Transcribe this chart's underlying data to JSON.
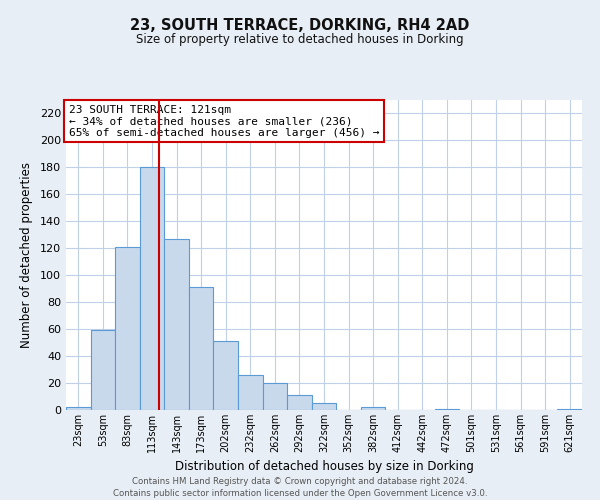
{
  "title": "23, SOUTH TERRACE, DORKING, RH4 2AD",
  "subtitle": "Size of property relative to detached houses in Dorking",
  "xlabel": "Distribution of detached houses by size in Dorking",
  "ylabel": "Number of detached properties",
  "bar_labels": [
    "23sqm",
    "53sqm",
    "83sqm",
    "113sqm",
    "143sqm",
    "173sqm",
    "202sqm",
    "232sqm",
    "262sqm",
    "292sqm",
    "322sqm",
    "352sqm",
    "382sqm",
    "412sqm",
    "442sqm",
    "472sqm",
    "501sqm",
    "531sqm",
    "561sqm",
    "591sqm",
    "621sqm"
  ],
  "bar_values": [
    2,
    59,
    121,
    180,
    127,
    91,
    51,
    26,
    20,
    11,
    5,
    0,
    2,
    0,
    0,
    1,
    0,
    0,
    0,
    0,
    1
  ],
  "bar_color": "#c9d9ec",
  "bar_edge_color": "#5b9bd5",
  "grid_color": "#c0d0e8",
  "background_color": "#e8eef5",
  "plot_background": "#ffffff",
  "vline_color": "#cc0000",
  "vline_x": 3.27,
  "annotation_text": "23 SOUTH TERRACE: 121sqm\n← 34% of detached houses are smaller (236)\n65% of semi-detached houses are larger (456) →",
  "annotation_box_color": "#ffffff",
  "annotation_box_edge": "#cc0000",
  "ylim": [
    0,
    230
  ],
  "yticks": [
    0,
    20,
    40,
    60,
    80,
    100,
    120,
    140,
    160,
    180,
    200,
    220
  ],
  "footer1": "Contains HM Land Registry data © Crown copyright and database right 2024.",
  "footer2": "Contains public sector information licensed under the Open Government Licence v3.0."
}
